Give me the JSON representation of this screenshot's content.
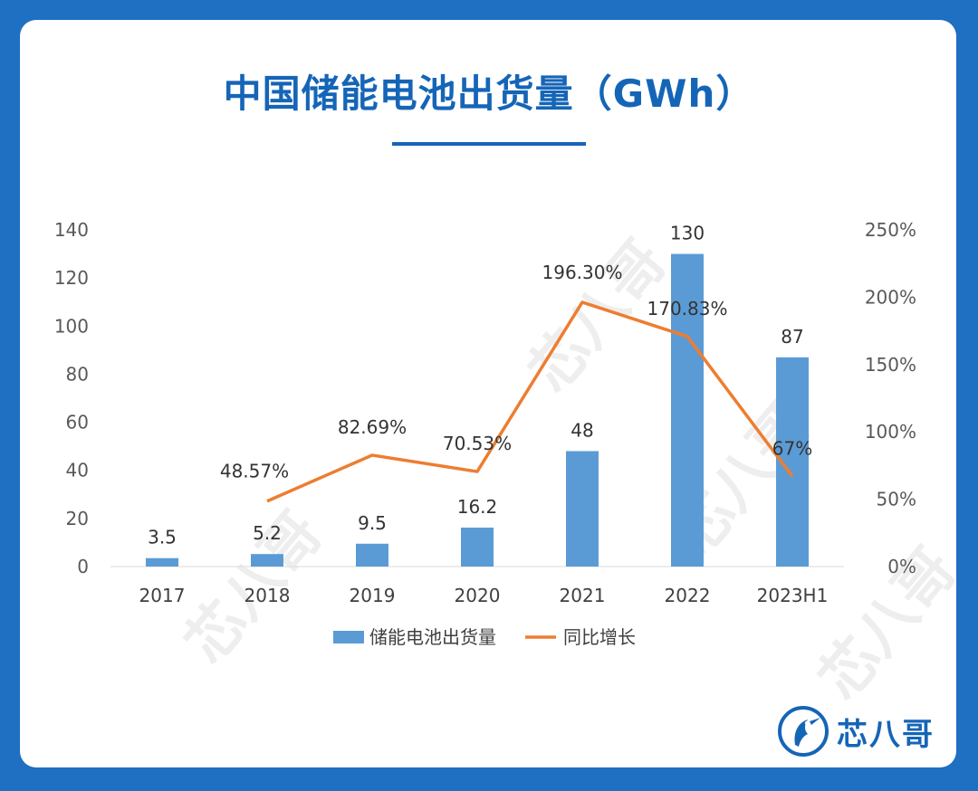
{
  "page": {
    "title": "中国储能电池出货量（GWh）",
    "logo_text": "芯八哥",
    "watermark_text": "芯八哥"
  },
  "chart_data": {
    "type": "bar",
    "categories": [
      "2017",
      "2018",
      "2019",
      "2020",
      "2021",
      "2022",
      "2023H1"
    ],
    "series": [
      {
        "name": "储能电池出货量",
        "kind": "bar",
        "axis": "left",
        "color": "#5b9bd5",
        "values": [
          3.5,
          5.2,
          9.5,
          16.2,
          48,
          130,
          87
        ],
        "labels": [
          "3.5",
          "5.2",
          "9.5",
          "16.2",
          "48",
          "130",
          "87"
        ]
      },
      {
        "name": "同比增长",
        "kind": "line",
        "axis": "right",
        "color": "#ed7d31",
        "values": [
          null,
          48.57,
          82.69,
          70.53,
          196.3,
          170.83,
          67
        ],
        "labels": [
          "",
          "48.57%",
          "82.69%",
          "70.53%",
          "196.30%",
          "170.83%",
          "67%"
        ]
      }
    ],
    "y_left": {
      "min": 0,
      "max": 140,
      "ticks": [
        "0",
        "20",
        "40",
        "60",
        "80",
        "100",
        "120",
        "140"
      ]
    },
    "y_right": {
      "min": 0,
      "max": 250,
      "ticks": [
        "0%",
        "50%",
        "100%",
        "150%",
        "200%",
        "250%"
      ]
    },
    "legend_position": "bottom",
    "grid": false
  }
}
